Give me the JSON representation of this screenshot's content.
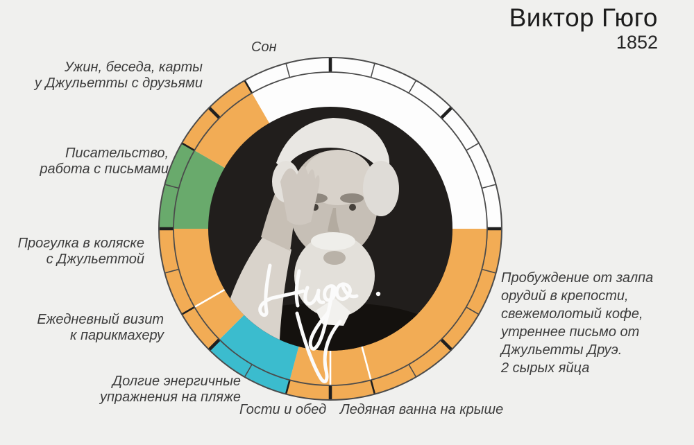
{
  "title": {
    "name": "Виктор Гюго",
    "year": "1852"
  },
  "portrait": {
    "signature": "Hugo."
  },
  "labels": {
    "sleep": "Сон",
    "dinner": [
      "Ужин, беседа, карты",
      "у Джульетты с друзьями"
    ],
    "writing": [
      "Писательство,",
      "работа с письмами"
    ],
    "ride": [
      "Прогулка в коляске",
      "с Джульеттой"
    ],
    "barber": [
      "Ежедневный визит",
      "к парикмахеру"
    ],
    "exercise": [
      "Долгие энергичные",
      "упражнения на пляже"
    ],
    "lunch": "Гости и обед",
    "bath": "Ледяная ванна на крыше",
    "morning": [
      "Пробуждение от залпа",
      "орудий в крепости,",
      "свежемолотый кофе,",
      "утреннее письмо от",
      "Джульетты Друэ.",
      "2 сырых яйца"
    ]
  },
  "chart_data": {
    "type": "pie",
    "subtype": "24h-clock-donut",
    "clock_hours": 24,
    "midnight_at_top": true,
    "clockwise": true,
    "title": "Виктор Гюго 1852 — распорядок дня",
    "colors": {
      "sleep": "#fdfdfd",
      "leisure": "#f2ac55",
      "exercise": "#3bbcce",
      "creative": "#69aa6c",
      "ring_line": "#4b4b4b",
      "thick_tick": "#1f1f1f",
      "background": "#f0f0ee",
      "portrait_bg": "#211e1c"
    },
    "segments": [
      {
        "label": "Сон",
        "start": 22,
        "end": 6,
        "hours": 8,
        "color_key": "sleep"
      },
      {
        "label": "Пробуждение от залпа орудий в крепости, свежемолотый кофе, утреннее письмо от Джульетты Друэ. 2 сырых яйца",
        "start": 6,
        "end": 11,
        "hours": 5,
        "color_key": "leisure"
      },
      {
        "label": "Ледяная ванна на крыше",
        "start": 11,
        "end": 12,
        "hours": 1,
        "color_key": "leisure"
      },
      {
        "label": "Гости и обед",
        "start": 12,
        "end": 13,
        "hours": 1,
        "color_key": "leisure"
      },
      {
        "label": "Долгие энергичные упражнения на пляже",
        "start": 13,
        "end": 15,
        "hours": 2,
        "color_key": "exercise"
      },
      {
        "label": "Ежедневный визит к парикмахеру",
        "start": 15,
        "end": 16,
        "hours": 1,
        "color_key": "leisure"
      },
      {
        "label": "Прогулка в коляске с Джульеттой",
        "start": 16,
        "end": 18,
        "hours": 2,
        "color_key": "leisure"
      },
      {
        "label": "Писательство, работа с письмами",
        "start": 18,
        "end": 20,
        "hours": 2,
        "color_key": "creative"
      },
      {
        "label": "Ужин, беседа, карты у Джульетты с друзьями",
        "start": 20,
        "end": 22,
        "hours": 2,
        "color_key": "leisure"
      }
    ],
    "hour_ticks": "every hour in outer band",
    "thick_tick_every": 3,
    "white_inner_dividers": [
      11,
      12,
      16
    ],
    "legend_position": "callouts around ring"
  }
}
